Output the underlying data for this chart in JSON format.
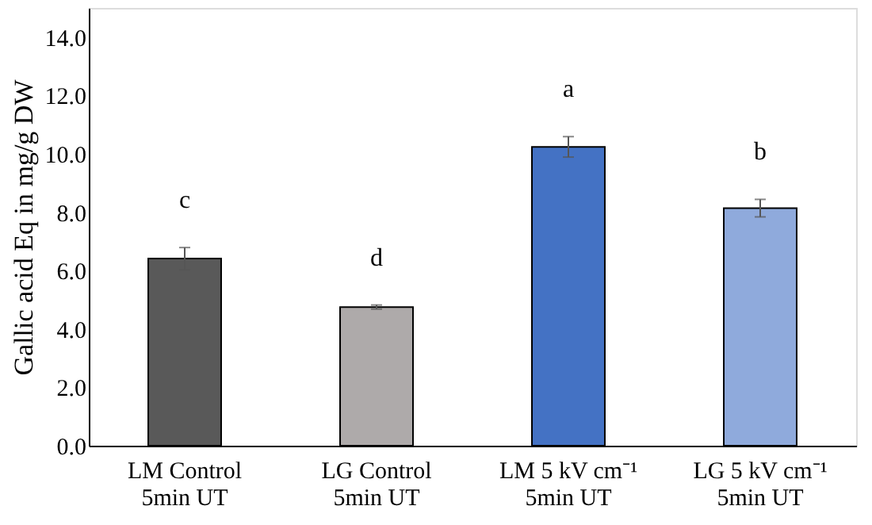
{
  "chart_data": {
    "type": "bar",
    "ylabel": "Gallic acid Eq in mg/g DW",
    "categories": [
      "LM Control\n5min UT",
      "LG Control\n5min UT",
      "LM 5 kV cm⁻¹\n5min UT",
      "LG 5 kV cm⁻¹\n5min UT"
    ],
    "values": [
      6.41,
      4.75,
      10.24,
      8.14
    ],
    "colors": [
      "#595959",
      "#aeaaaa",
      "#4472c4",
      "#8faadc"
    ],
    "errors": [
      0.38,
      0.07,
      0.35,
      0.3
    ],
    "ylim": [
      0,
      15
    ],
    "yticks": [
      {
        "value": 0,
        "label": "0.0"
      },
      {
        "value": 2,
        "label": "2.0"
      },
      {
        "value": 4,
        "label": "4.0"
      },
      {
        "value": 6,
        "label": "6.0"
      },
      {
        "value": 8,
        "label": "8.0"
      },
      {
        "value": 10,
        "label": "10.0"
      },
      {
        "value": 12,
        "label": "12.0"
      },
      {
        "value": 14,
        "label": "14.0"
      }
    ],
    "grid": false,
    "annotations": [
      "c",
      "d",
      "a",
      "b"
    ]
  }
}
